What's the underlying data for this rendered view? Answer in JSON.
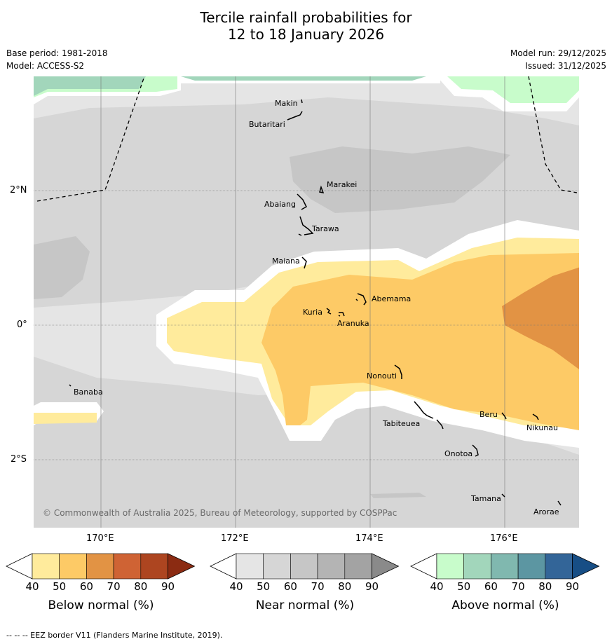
{
  "title_line1": "Tercile rainfall probabilities for",
  "title_line2": "12 to 18 January 2026",
  "meta": {
    "base_period": "Base period: 1981-2018",
    "model": "Model: ACCESS-S2",
    "model_run": "Model run: 29/12/2025",
    "issued": "Issued: 31/12/2025"
  },
  "copyright": "© Commonwealth of Australia 2025, Bureau of Meteorology, supported by COSPPac",
  "axes": {
    "lon_ticks": [
      "170°E",
      "172°E",
      "174°E",
      "176°E"
    ],
    "lat_ticks": [
      "2°N",
      "0°",
      "2°S"
    ]
  },
  "islands": [
    "Makin",
    "Butaritari",
    "Marakei",
    "Abaiang",
    "Tarawa",
    "Maiana",
    "Abemama",
    "Kuria",
    "Aranuka",
    "Banaba",
    "Nonouti",
    "Tabiteuea",
    "Beru",
    "Nikunau",
    "Onotoa",
    "Tamana",
    "Arorae"
  ],
  "colorbars": [
    {
      "label": "Below normal (%)",
      "ticks": [
        "40",
        "50",
        "60",
        "70",
        "80",
        "90"
      ],
      "colors": [
        "#ffffff",
        "#ffeb9c",
        "#fdca66",
        "#e29344",
        "#cf6334",
        "#ad4520",
        "#8b2b12"
      ]
    },
    {
      "label": "Near normal (%)",
      "ticks": [
        "40",
        "50",
        "60",
        "70",
        "80",
        "90"
      ],
      "colors": [
        "#ffffff",
        "#e5e5e5",
        "#d6d6d6",
        "#c6c6c6",
        "#b4b4b4",
        "#a3a3a3",
        "#8a8a8a"
      ]
    },
    {
      "label": "Above normal (%)",
      "ticks": [
        "40",
        "50",
        "60",
        "70",
        "80",
        "90"
      ],
      "colors": [
        "#ffffff",
        "#c8fccb",
        "#a2d6bb",
        "#80b8af",
        "#5c96a2",
        "#336598",
        "#174e85"
      ]
    }
  ],
  "footer": "--  --  -- EEZ border V11 (Flanders Marine Institute, 2019)."
}
